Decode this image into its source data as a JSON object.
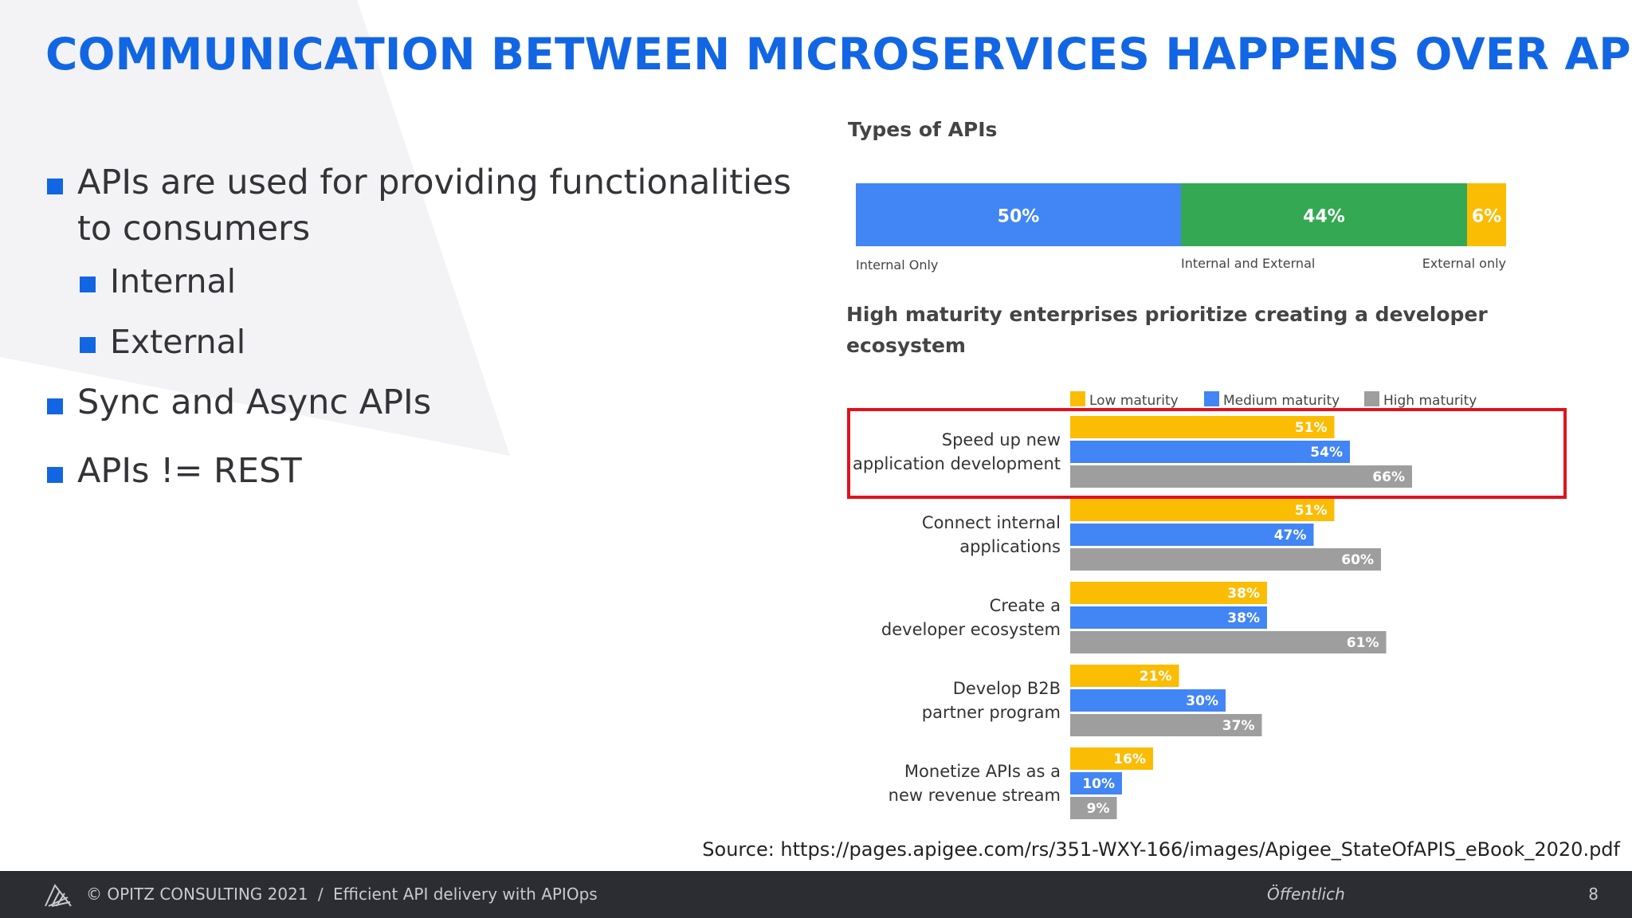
{
  "slide": {
    "title": "COMMUNICATION BETWEEN MICROSERVICES HAPPENS OVER APIS",
    "bullets": {
      "b1": "APIs are used for providing functionalities to consumers",
      "b1_1": "Internal",
      "b1_2": "External",
      "b2": "Sync and Async APIs",
      "b3": "APIs != REST"
    },
    "source": "Source: https://pages.apigee.com/rs/351-WXY-166/images/Apigee_StateOfAPIS_eBook_2020.pdf"
  },
  "footer": {
    "copyright": "© OPITZ CONSULTING 2021",
    "separator": "/",
    "subtitle": "Efficient API delivery with APIOps",
    "classification": "Öffentlich",
    "page": "8"
  },
  "colors": {
    "title_blue": "#1266e3",
    "chart_blue": "#4285f4",
    "chart_green": "#34a853",
    "chart_yellow": "#fbbc04",
    "chart_gray": "#9e9e9e",
    "highlight_red": "#e0121d",
    "footer_bg": "#2c2c33"
  },
  "chart_data": [
    {
      "type": "bar",
      "title": "Types of APIs",
      "stacked": true,
      "orientation": "horizontal",
      "segments": [
        {
          "label": "Internal Only",
          "value": 50,
          "value_label": "50%",
          "color": "#4285f4"
        },
        {
          "label": "Internal and External",
          "value": 44,
          "value_label": "44%",
          "color": "#34a853"
        },
        {
          "label": "External only",
          "value": 6,
          "value_label": "6%",
          "color": "#fbbc04"
        }
      ]
    },
    {
      "type": "bar",
      "title": "High maturity enterprises prioritize creating a developer ecosystem",
      "orientation": "horizontal",
      "legend_position": "top",
      "highlighted_category": "Speed up new application development",
      "categories": [
        "Speed up new application development",
        "Connect internal applications",
        "Create a developer ecosystem",
        "Develop B2B partner program",
        "Monetize APIs as a new revenue stream"
      ],
      "series": [
        {
          "name": "Low maturity",
          "color": "#fbbc04",
          "values": [
            51,
            51,
            38,
            21,
            16
          ],
          "labels": [
            "51%",
            "51%",
            "38%",
            "21%",
            "16%"
          ]
        },
        {
          "name": "Medium maturity",
          "color": "#4285f4",
          "values": [
            54,
            47,
            38,
            30,
            10
          ],
          "labels": [
            "54%",
            "47%",
            "38%",
            "30%",
            "10%"
          ]
        },
        {
          "name": "High maturity",
          "color": "#9e9e9e",
          "values": [
            66,
            60,
            61,
            37,
            9
          ],
          "labels": [
            "66%",
            "60%",
            "61%",
            "37%",
            "9%"
          ]
        }
      ]
    }
  ]
}
